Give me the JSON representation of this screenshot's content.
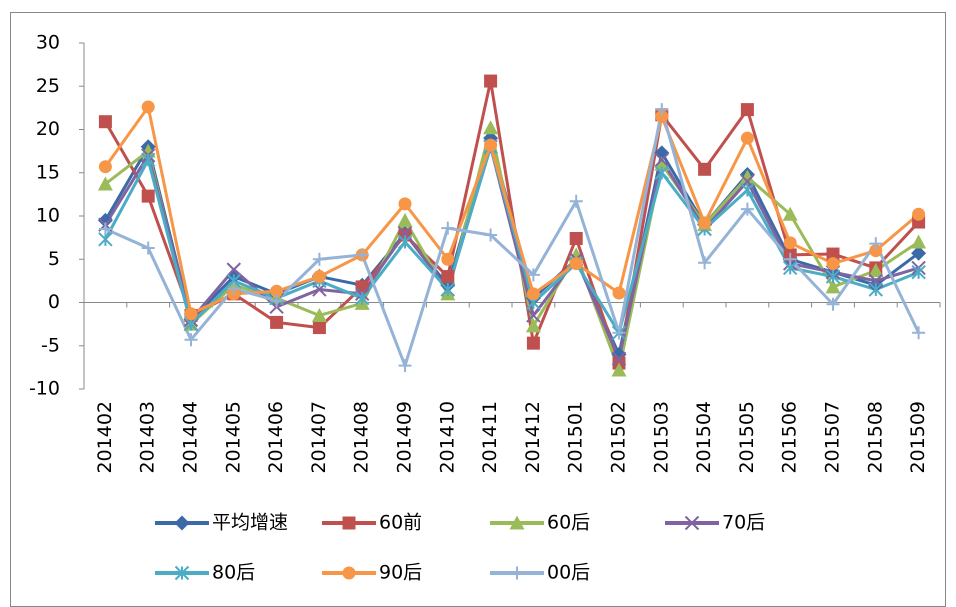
{
  "chart_data": {
    "type": "line",
    "categories": [
      "201402",
      "201403",
      "201404",
      "201405",
      "201406",
      "201407",
      "201408",
      "201409",
      "201410",
      "201411",
      "201412",
      "201501",
      "201502",
      "201503",
      "201504",
      "201505",
      "201506",
      "201507",
      "201508",
      "201509"
    ],
    "ylim": [
      -10,
      30
    ],
    "yticks": [
      -10,
      -5,
      0,
      5,
      10,
      15,
      20,
      25,
      30
    ],
    "series": [
      {
        "name": "平均增速",
        "color": "#3a6aa8",
        "marker": "diamond",
        "values": [
          9.5,
          18,
          -2,
          3,
          1,
          3,
          2,
          8,
          2,
          19,
          0.5,
          5,
          -6,
          17.3,
          9,
          14.8,
          5,
          3.5,
          2,
          5.7
        ]
      },
      {
        "name": "60前",
        "color": "#c0504d",
        "marker": "square",
        "values": [
          20.9,
          12.3,
          -1.5,
          1,
          -2.3,
          -2.9,
          1.8,
          7.8,
          3,
          25.6,
          -4.7,
          7.4,
          -7,
          21.7,
          15.4,
          22.3,
          5.5,
          5.6,
          4,
          9.3
        ]
      },
      {
        "name": "60后",
        "color": "#9bbb59",
        "marker": "triangle",
        "values": [
          13.7,
          17.5,
          -2.5,
          2,
          0.5,
          -1.5,
          -0.1,
          9.5,
          1,
          20.2,
          -2.7,
          5.5,
          -7.8,
          16,
          9,
          14.5,
          10.2,
          1.8,
          3.7,
          7
        ]
      },
      {
        "name": "70后",
        "color": "#8064a2",
        "marker": "x",
        "values": [
          9,
          17,
          -2,
          3.8,
          -0.5,
          1.5,
          1,
          8,
          1.5,
          18,
          -1.5,
          5,
          -6.5,
          16.5,
          8.5,
          14,
          4.5,
          3.5,
          2.5,
          4
        ]
      },
      {
        "name": "80后",
        "color": "#4bacc6",
        "marker": "star",
        "values": [
          7.3,
          16.5,
          -2.5,
          2.5,
          0.5,
          2.5,
          0.5,
          7,
          1.5,
          18,
          0,
          4.5,
          -3.5,
          15,
          8.5,
          13,
          4,
          3,
          1.5,
          3.5
        ]
      },
      {
        "name": "90后",
        "color": "#f79646",
        "marker": "circle",
        "values": [
          15.7,
          22.6,
          -1.3,
          1,
          1.3,
          3,
          5.5,
          11.4,
          5,
          18.2,
          1,
          4.5,
          1.1,
          21.5,
          9.2,
          19,
          6.9,
          4.5,
          6,
          10.2
        ]
      },
      {
        "name": "00后",
        "color": "#94b3d6",
        "marker": "plus",
        "values": [
          8.5,
          6.3,
          -4.3,
          1.6,
          0.2,
          5,
          5.5,
          -7.3,
          8.6,
          7.8,
          3.2,
          11.7,
          -3.5,
          22.3,
          4.6,
          10.8,
          5,
          -0.2,
          6.8,
          -3.5
        ]
      }
    ]
  }
}
